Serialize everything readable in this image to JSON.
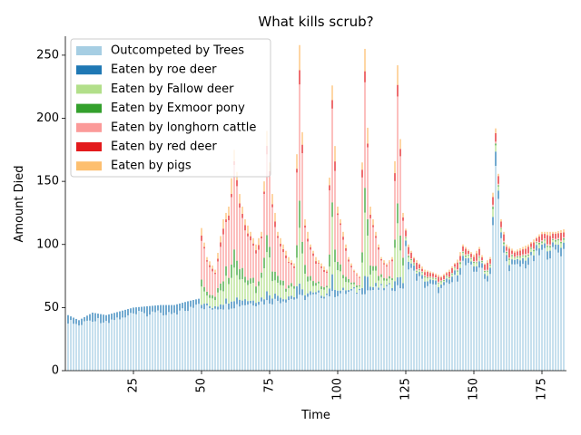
{
  "chart_data": {
    "type": "bar",
    "stacked": true,
    "title": "What kills scrub?",
    "xlabel": "Time",
    "ylabel": "Amount Died",
    "xlim": [
      0,
      184
    ],
    "ylim": [
      0,
      265
    ],
    "xticks": [
      25,
      50,
      75,
      100,
      125,
      150,
      175
    ],
    "yticks": [
      0,
      50,
      100,
      150,
      200,
      250
    ],
    "legend_position": "upper-left",
    "series": [
      {
        "name": "Outcompeted by Trees",
        "color": "#a6cee3"
      },
      {
        "name": "Eaten by roe deer",
        "color": "#1f78b4"
      },
      {
        "name": "Eaten by Fallow deer",
        "color": "#b2df8a"
      },
      {
        "name": "Eaten by Exmoor pony",
        "color": "#33a02c"
      },
      {
        "name": "Eaten by longhorn cattle",
        "color": "#fb9a99"
      },
      {
        "name": "Eaten by red deer",
        "color": "#e31a1c"
      },
      {
        "name": "Eaten by pigs",
        "color": "#fdbf6f"
      }
    ],
    "total_profile": [
      [
        1,
        44
      ],
      [
        5,
        40
      ],
      [
        10,
        46
      ],
      [
        15,
        44
      ],
      [
        20,
        47
      ],
      [
        25,
        50
      ],
      [
        30,
        51
      ],
      [
        35,
        52
      ],
      [
        40,
        52
      ],
      [
        45,
        55
      ],
      [
        49,
        57
      ],
      [
        50,
        113
      ],
      [
        52,
        90
      ],
      [
        55,
        80
      ],
      [
        58,
        120
      ],
      [
        60,
        130
      ],
      [
        62,
        175
      ],
      [
        64,
        140
      ],
      [
        66,
        120
      ],
      [
        68,
        110
      ],
      [
        70,
        100
      ],
      [
        72,
        110
      ],
      [
        74,
        190
      ],
      [
        76,
        140
      ],
      [
        78,
        110
      ],
      [
        80,
        100
      ],
      [
        82,
        90
      ],
      [
        84,
        85
      ],
      [
        86,
        258
      ],
      [
        88,
        120
      ],
      [
        90,
        100
      ],
      [
        92,
        90
      ],
      [
        94,
        85
      ],
      [
        96,
        80
      ],
      [
        98,
        226
      ],
      [
        100,
        130
      ],
      [
        102,
        110
      ],
      [
        104,
        90
      ],
      [
        106,
        80
      ],
      [
        108,
        75
      ],
      [
        110,
        255
      ],
      [
        112,
        130
      ],
      [
        114,
        110
      ],
      [
        116,
        90
      ],
      [
        118,
        85
      ],
      [
        120,
        90
      ],
      [
        122,
        242
      ],
      [
        124,
        125
      ],
      [
        126,
        100
      ],
      [
        128,
        90
      ],
      [
        130,
        85
      ],
      [
        132,
        80
      ],
      [
        135,
        78
      ],
      [
        138,
        75
      ],
      [
        141,
        80
      ],
      [
        144,
        88
      ],
      [
        146,
        100
      ],
      [
        148,
        96
      ],
      [
        150,
        92
      ],
      [
        152,
        98
      ],
      [
        154,
        85
      ],
      [
        156,
        90
      ],
      [
        158,
        192
      ],
      [
        160,
        120
      ],
      [
        162,
        100
      ],
      [
        165,
        95
      ],
      [
        170,
        100
      ],
      [
        175,
        110
      ],
      [
        180,
        110
      ],
      [
        183,
        112
      ]
    ]
  }
}
